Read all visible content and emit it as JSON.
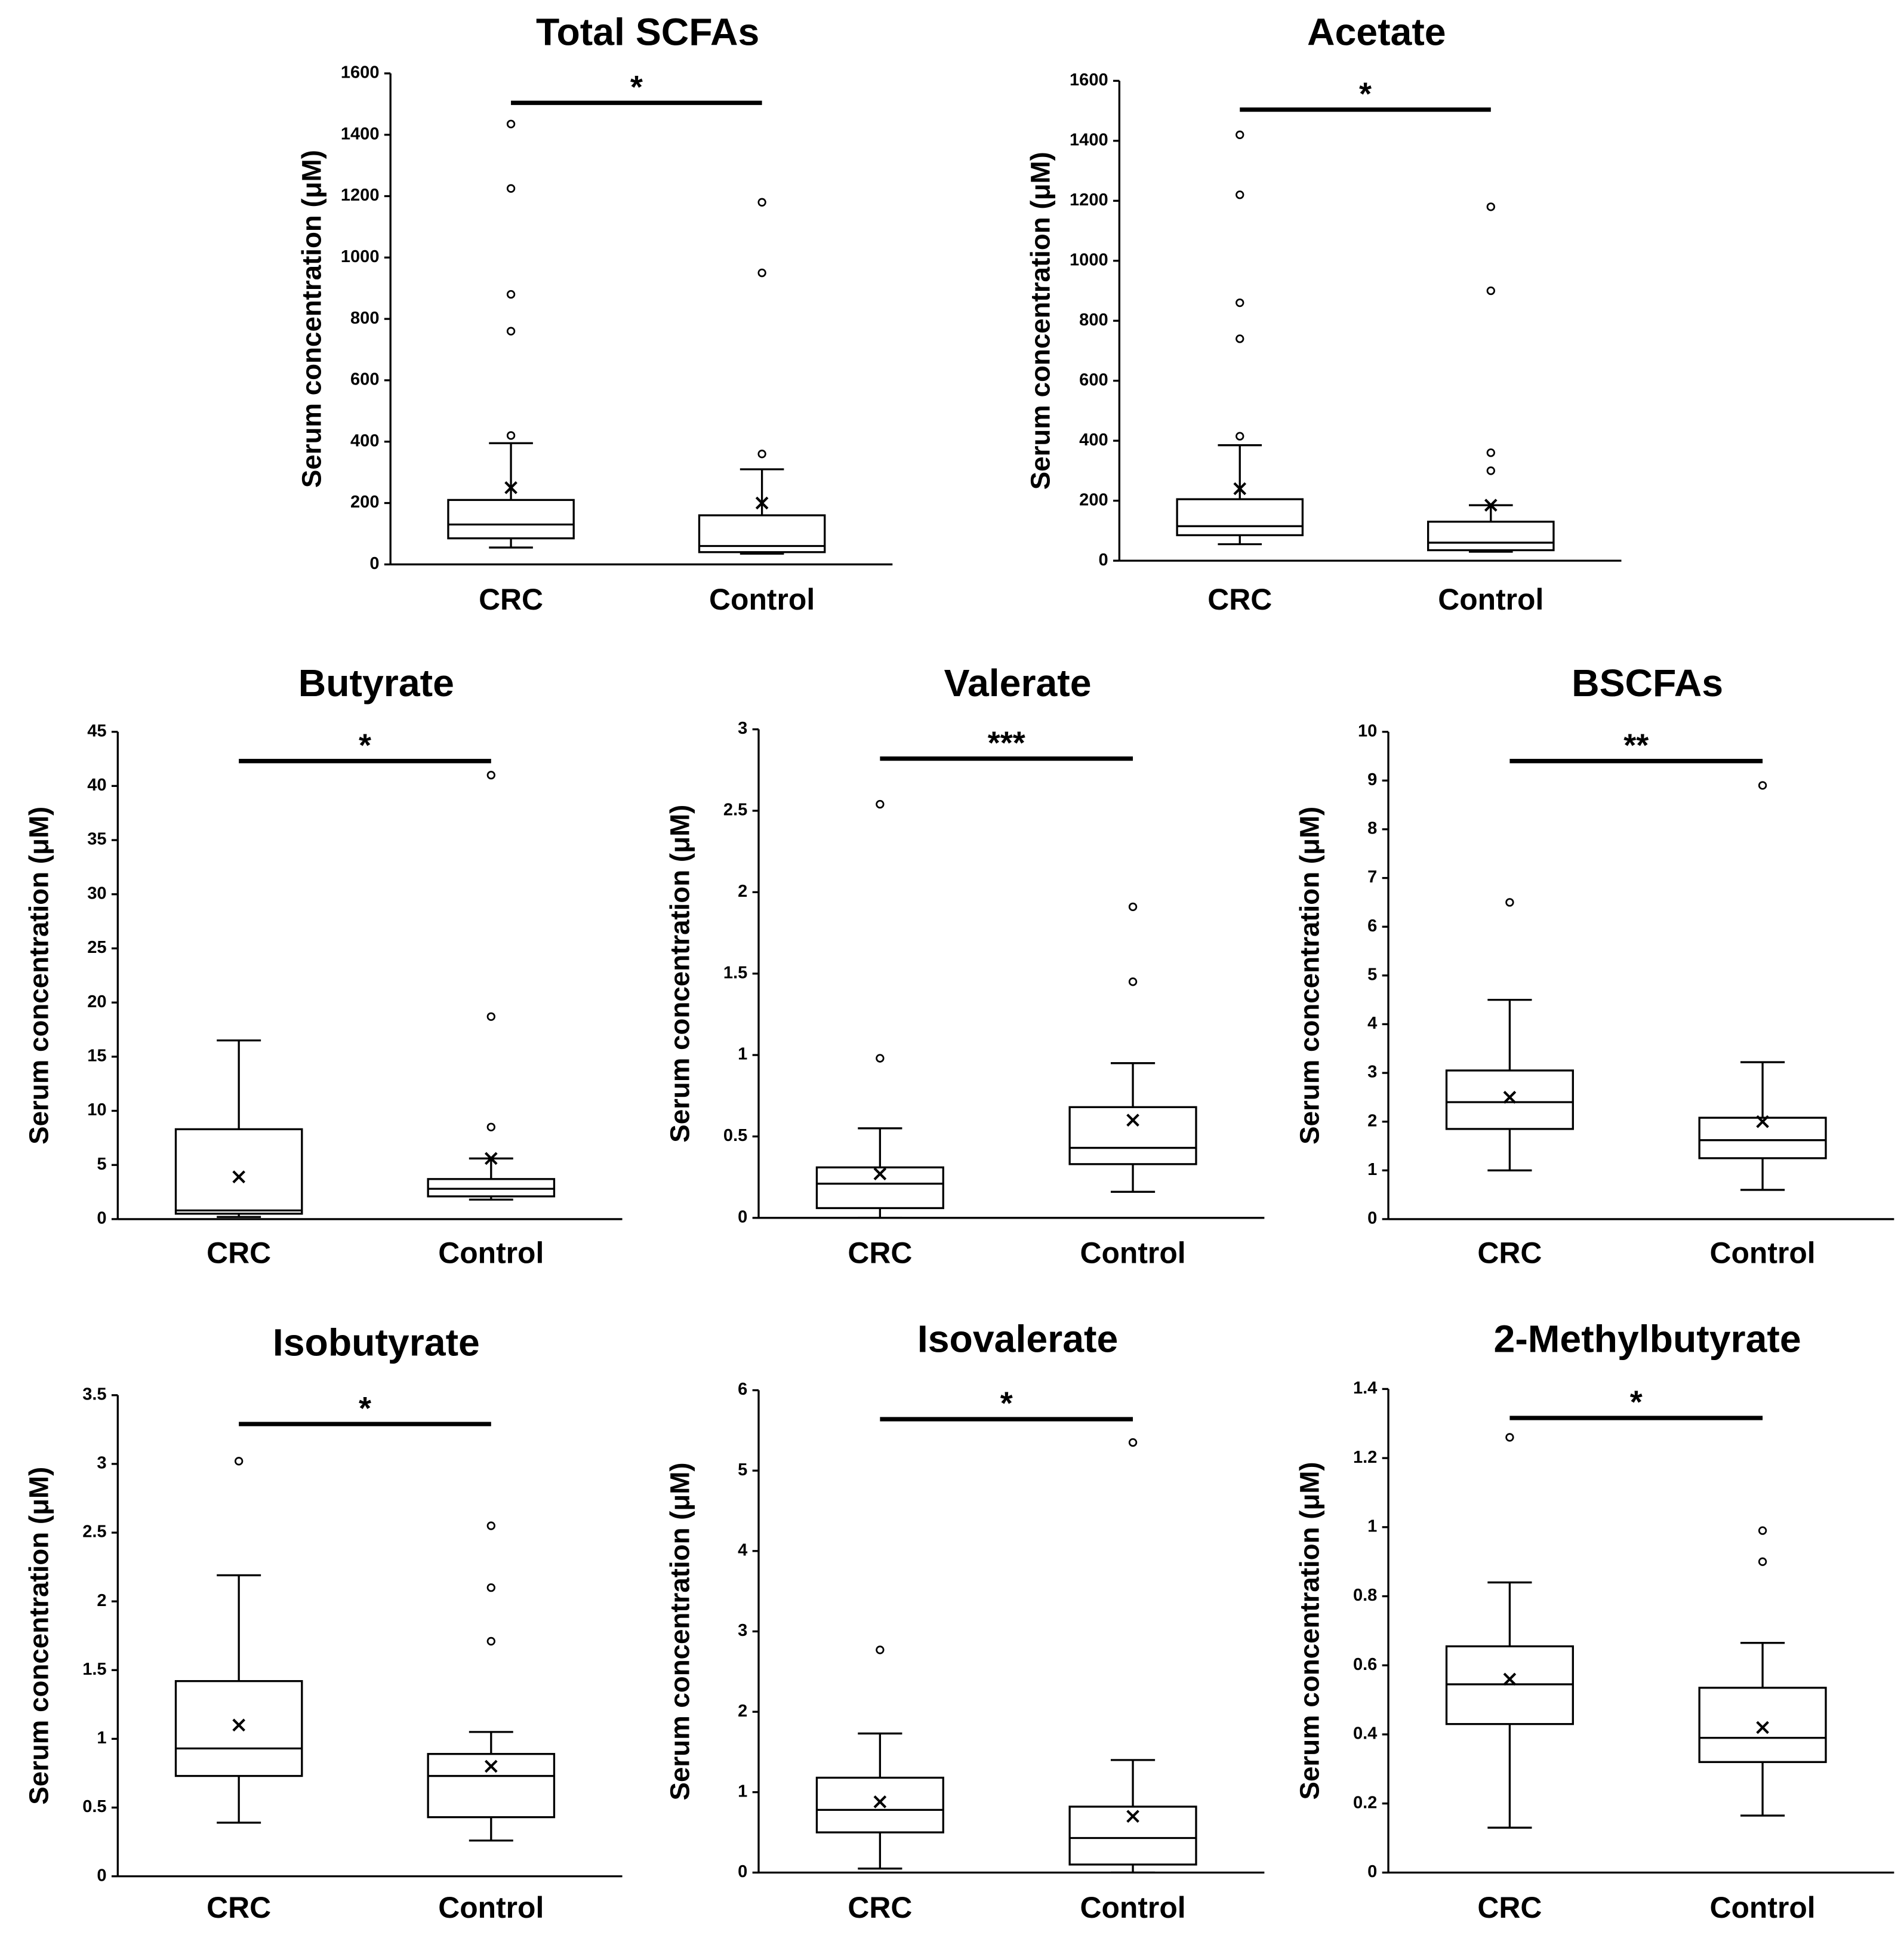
{
  "chart_data": [
    {
      "type": "box",
      "title": "Total SCFAs",
      "y_label": "Serum concentration (μM)",
      "categories": [
        "CRC",
        "Control"
      ],
      "ylim": [
        0,
        1600
      ],
      "yticks": [
        0,
        200,
        400,
        600,
        800,
        1000,
        1200,
        1400,
        1600
      ],
      "significance": "*",
      "boxes": [
        {
          "whisker_low": 55,
          "q1": 85,
          "median": 130,
          "q3": 210,
          "whisker_high": 395,
          "mean": 250,
          "outliers": [
            420,
            760,
            880,
            1225,
            1435
          ]
        },
        {
          "whisker_low": 35,
          "q1": 40,
          "median": 60,
          "q3": 160,
          "whisker_high": 310,
          "mean": 200,
          "outliers": [
            360,
            950,
            1180
          ]
        }
      ]
    },
    {
      "type": "box",
      "title": "Acetate",
      "y_label": "Serum concentration (μM)",
      "categories": [
        "CRC",
        "Control"
      ],
      "ylim": [
        0,
        1600
      ],
      "yticks": [
        0,
        200,
        400,
        600,
        800,
        1000,
        1200,
        1400,
        1600
      ],
      "significance": "*",
      "boxes": [
        {
          "whisker_low": 55,
          "q1": 85,
          "median": 115,
          "q3": 205,
          "whisker_high": 385,
          "mean": 240,
          "outliers": [
            415,
            740,
            860,
            1220,
            1420
          ]
        },
        {
          "whisker_low": 30,
          "q1": 35,
          "median": 60,
          "q3": 130,
          "whisker_high": 185,
          "mean": 185,
          "outliers": [
            300,
            360,
            900,
            1180
          ]
        }
      ]
    },
    {
      "type": "box",
      "title": "Butyrate",
      "y_label": "Serum concentration (μM)",
      "categories": [
        "CRC",
        "Control"
      ],
      "ylim": [
        0,
        45
      ],
      "yticks": [
        0,
        5,
        10,
        15,
        20,
        25,
        30,
        35,
        40,
        45
      ],
      "significance": "*",
      "boxes": [
        {
          "whisker_low": 0.2,
          "q1": 0.5,
          "median": 0.8,
          "q3": 8.3,
          "whisker_high": 16.5,
          "mean": 3.9,
          "outliers": []
        },
        {
          "whisker_low": 1.8,
          "q1": 2.1,
          "median": 2.8,
          "q3": 3.7,
          "whisker_high": 5.6,
          "mean": 5.6,
          "outliers": [
            8.5,
            18.7,
            41
          ]
        }
      ]
    },
    {
      "type": "box",
      "title": "Valerate",
      "y_label": "Serum concentration (μM)",
      "categories": [
        "CRC",
        "Control"
      ],
      "ylim": [
        0,
        3
      ],
      "yticks": [
        0,
        0.5,
        1,
        1.5,
        2,
        2.5,
        3
      ],
      "significance": "***",
      "boxes": [
        {
          "whisker_low": 0,
          "q1": 0.06,
          "median": 0.21,
          "q3": 0.31,
          "whisker_high": 0.55,
          "mean": 0.27,
          "outliers": [
            0.98,
            2.54
          ]
        },
        {
          "whisker_low": 0.16,
          "q1": 0.33,
          "median": 0.43,
          "q3": 0.68,
          "whisker_high": 0.95,
          "mean": 0.6,
          "outliers": [
            1.45,
            1.91
          ]
        }
      ]
    },
    {
      "type": "box",
      "title": "BSCFAs",
      "y_label": "Serum concentration (μM)",
      "categories": [
        "CRC",
        "Control"
      ],
      "ylim": [
        0,
        10
      ],
      "yticks": [
        0,
        1,
        2,
        3,
        4,
        5,
        6,
        7,
        8,
        9,
        10
      ],
      "significance": "**",
      "boxes": [
        {
          "whisker_low": 1.0,
          "q1": 1.85,
          "median": 2.4,
          "q3": 3.05,
          "whisker_high": 4.5,
          "mean": 2.5,
          "outliers": [
            6.5
          ]
        },
        {
          "whisker_low": 0.6,
          "q1": 1.25,
          "median": 1.62,
          "q3": 2.08,
          "whisker_high": 3.22,
          "mean": 2.0,
          "outliers": [
            8.9
          ]
        }
      ]
    },
    {
      "type": "box",
      "title": "Isobutyrate",
      "y_label": "Serum concentration (μM)",
      "categories": [
        "CRC",
        "Control"
      ],
      "ylim": [
        0,
        3.5
      ],
      "yticks": [
        0,
        0.5,
        1,
        1.5,
        2,
        2.5,
        3,
        3.5
      ],
      "significance": "*",
      "boxes": [
        {
          "whisker_low": 0.39,
          "q1": 0.73,
          "median": 0.93,
          "q3": 1.42,
          "whisker_high": 2.19,
          "mean": 1.1,
          "outliers": [
            3.02
          ]
        },
        {
          "whisker_low": 0.26,
          "q1": 0.43,
          "median": 0.73,
          "q3": 0.89,
          "whisker_high": 1.05,
          "mean": 0.8,
          "outliers": [
            1.71,
            2.1,
            2.55
          ]
        }
      ]
    },
    {
      "type": "box",
      "title": "Isovalerate",
      "y_label": "Serum concentration (μM)",
      "categories": [
        "CRC",
        "Control"
      ],
      "ylim": [
        0,
        6
      ],
      "yticks": [
        0,
        1,
        2,
        3,
        4,
        5,
        6
      ],
      "significance": "*",
      "boxes": [
        {
          "whisker_low": 0.05,
          "q1": 0.5,
          "median": 0.78,
          "q3": 1.18,
          "whisker_high": 1.73,
          "mean": 0.88,
          "outliers": [
            2.77
          ]
        },
        {
          "whisker_low": 0,
          "q1": 0.1,
          "median": 0.43,
          "q3": 0.82,
          "whisker_high": 1.4,
          "mean": 0.7,
          "outliers": [
            5.35
          ]
        }
      ]
    },
    {
      "type": "box",
      "title": "2-Methylbutyrate",
      "y_label": "Serum concentration (μM)",
      "categories": [
        "CRC",
        "Control"
      ],
      "ylim": [
        0,
        1.4
      ],
      "yticks": [
        0,
        0.2,
        0.4,
        0.6,
        0.8,
        1,
        1.2,
        1.4
      ],
      "significance": "*",
      "boxes": [
        {
          "whisker_low": 0.13,
          "q1": 0.43,
          "median": 0.545,
          "q3": 0.655,
          "whisker_high": 0.84,
          "mean": 0.56,
          "outliers": [
            1.26
          ]
        },
        {
          "whisker_low": 0.165,
          "q1": 0.32,
          "median": 0.39,
          "q3": 0.535,
          "whisker_high": 0.665,
          "mean": 0.42,
          "outliers": [
            0.9,
            0.99
          ]
        }
      ]
    }
  ]
}
